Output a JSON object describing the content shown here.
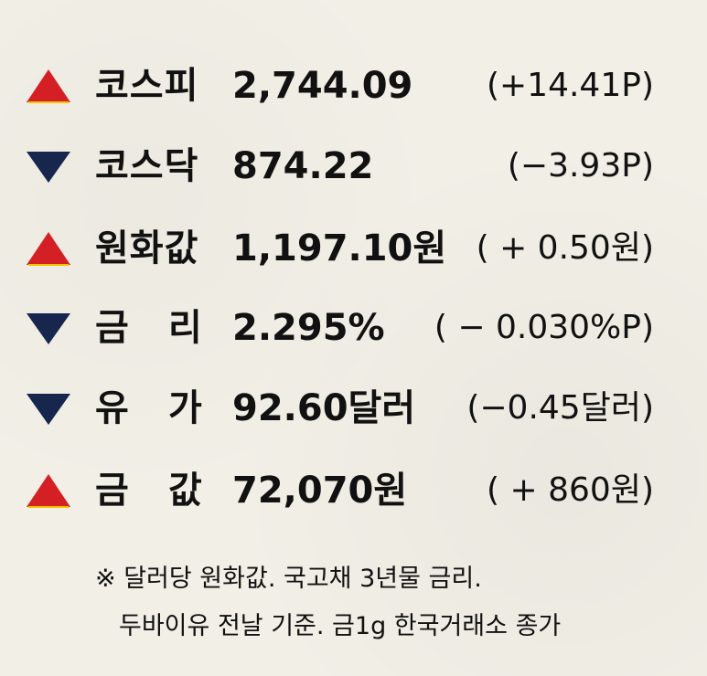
{
  "colors": {
    "up": "#d41f24",
    "down": "#16264d",
    "text": "#111111",
    "background": "#f1efe6"
  },
  "rows": [
    {
      "direction": "up",
      "icon": "up-triangle-icon",
      "label": "코스피",
      "label_chars": [
        "코스피",
        ""
      ],
      "value": "2,744.09",
      "change": "(+14.41P)"
    },
    {
      "direction": "down",
      "icon": "down-triangle-icon",
      "label": "코스닥",
      "label_chars": [
        "코스닥",
        ""
      ],
      "value": "874.22",
      "change": "(−3.93P)"
    },
    {
      "direction": "up",
      "icon": "up-triangle-icon",
      "label": "원화값",
      "label_chars": [
        "원화값",
        ""
      ],
      "value": "1,197.10원",
      "change": "( + 0.50원)"
    },
    {
      "direction": "down",
      "icon": "down-triangle-icon",
      "label": "금 리",
      "label_chars": [
        "금",
        "리"
      ],
      "value": "2.295%",
      "change": "( − 0.030%P)"
    },
    {
      "direction": "down",
      "icon": "down-triangle-icon",
      "label": "유 가",
      "label_chars": [
        "유",
        "가"
      ],
      "value": "92.60달러",
      "change": "(−0.45달러)"
    },
    {
      "direction": "up",
      "icon": "up-triangle-icon",
      "label": "금 값",
      "label_chars": [
        "금",
        "값"
      ],
      "value": "72,070원",
      "change": "( + 860원)"
    }
  ],
  "footnote": {
    "line1": "※ 달러당 원화값. 국고채 3년물 금리.",
    "line2": "두바이유 전날 기준. 금1g 한국거래소 종가"
  }
}
